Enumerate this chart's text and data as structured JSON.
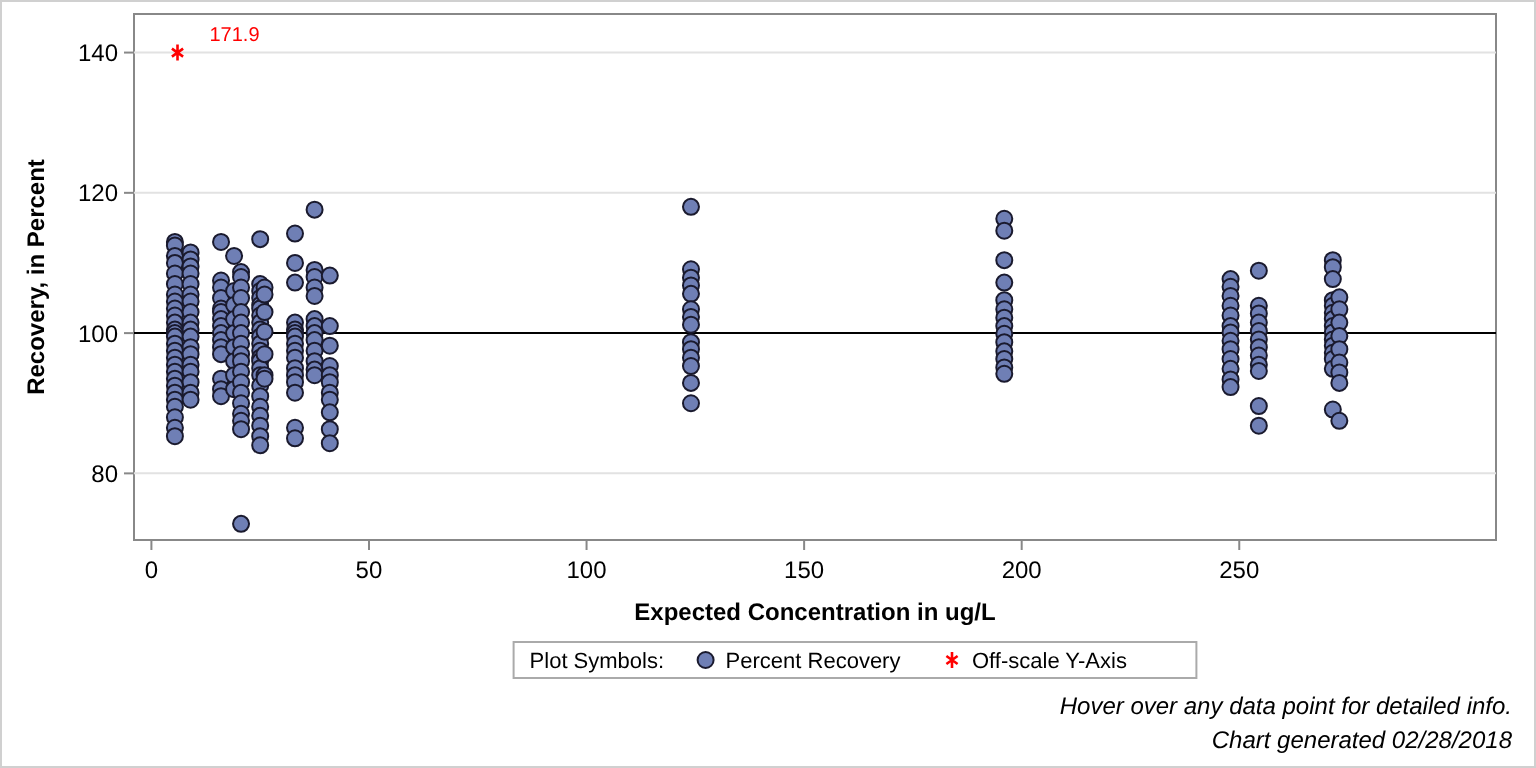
{
  "chart_data": {
    "type": "scatter",
    "xlabel": "Expected Concentration in ug/L",
    "ylabel": "Recovery, in Percent",
    "xlim": [
      -4,
      309
    ],
    "ylim": [
      70.5,
      145.5
    ],
    "xticks": [
      0,
      50,
      100,
      150,
      200,
      250
    ],
    "yticks": [
      80,
      100,
      120,
      140
    ],
    "grid": "y",
    "legend": "bottom",
    "legend_title": "Plot Symbols:",
    "ref_lines": [
      {
        "axis": "y",
        "value": 100,
        "color": "#000000"
      }
    ],
    "annotations": [
      {
        "text": "171.9",
        "x": 6,
        "y": 140
      },
      "Hover over any data point for detailed info.",
      "Chart generated 02/28/2018"
    ],
    "series": [
      {
        "name": "Percent Recovery",
        "marker": "circle",
        "color": "#6f7fb5",
        "x": [
          5.4,
          5.4,
          5.4,
          5.4,
          5.4,
          5.4,
          5.4,
          5.4,
          5.4,
          5.4,
          5.4,
          5.4,
          5.4,
          5.4,
          5.4,
          5.4,
          5.4,
          5.4,
          5.4,
          5.4,
          5.4,
          5.4,
          5.4,
          5.4,
          5.4,
          5.4,
          5.4,
          9,
          9,
          9,
          9,
          9,
          9,
          9,
          9,
          9,
          9,
          9,
          9,
          9,
          9,
          9,
          9,
          9,
          9,
          16,
          16,
          16,
          16,
          16,
          16,
          16,
          16,
          16,
          16,
          16,
          16,
          16,
          16,
          16,
          19,
          19,
          19,
          19,
          19,
          19,
          19,
          19,
          19,
          20.6,
          20.6,
          20.6,
          20.6,
          20.6,
          20.6,
          20.6,
          20.6,
          20.6,
          20.6,
          20.6,
          20.6,
          20.6,
          20.6,
          20.6,
          20.6,
          20.6,
          20.6,
          25,
          25,
          25,
          25,
          25,
          25,
          25,
          25,
          25,
          25,
          25,
          25,
          25,
          25,
          25,
          25,
          25,
          25,
          25,
          25,
          25,
          25,
          25,
          26,
          26,
          26,
          26,
          26,
          26,
          26,
          33,
          33,
          33,
          33,
          33,
          33,
          33,
          33,
          33,
          33,
          33,
          33,
          33,
          33,
          33,
          33,
          37.5,
          37.5,
          37.5,
          37.5,
          37.5,
          37.5,
          37.5,
          37.5,
          37.5,
          37.5,
          37.5,
          37.5,
          37.5,
          41,
          41,
          41,
          41,
          41,
          41,
          41,
          41,
          41,
          41,
          41,
          124,
          124,
          124,
          124,
          124,
          124,
          124,
          124,
          124,
          124,
          124,
          124,
          124,
          124,
          196,
          196,
          196,
          196,
          196,
          196,
          196,
          196,
          196,
          196,
          196,
          196,
          196,
          196,
          248,
          248,
          248,
          248,
          248,
          248,
          248,
          248,
          248,
          248,
          248,
          248,
          248,
          254.5,
          254.5,
          254.5,
          254.5,
          254.5,
          254.5,
          254.5,
          254.5,
          254.5,
          254.5,
          254.5,
          254.5,
          271.5,
          271.5,
          271.5,
          271.5,
          271.5,
          271.5,
          271.5,
          271.5,
          271.5,
          271.5,
          271.5,
          271.5,
          271.5,
          271.5,
          271.5,
          273,
          273,
          273,
          273,
          273,
          273,
          273,
          273,
          273
        ],
        "values": [
          113,
          112.5,
          111,
          110,
          108.5,
          107,
          105.5,
          104.5,
          103.5,
          102.5,
          101.5,
          100.5,
          100,
          99.5,
          98.5,
          97.5,
          96.5,
          95.5,
          94.5,
          93.5,
          92.5,
          91.5,
          90.5,
          89.5,
          88,
          86.5,
          85.3,
          111.5,
          110.5,
          109.5,
          108.5,
          107,
          105.5,
          104.5,
          103,
          101.5,
          100.5,
          99.5,
          98,
          97,
          95.5,
          94.5,
          93,
          91.5,
          90.5,
          113,
          107.5,
          106.5,
          105,
          103.5,
          103,
          102,
          101,
          100,
          99,
          98,
          97,
          93.5,
          92,
          91,
          111,
          106,
          104,
          102,
          100,
          98,
          96,
          94,
          92,
          108.7,
          108,
          106.5,
          105,
          103,
          101.5,
          100,
          98.5,
          97,
          96,
          94.5,
          93,
          91.5,
          90,
          88.5,
          87.5,
          86.3,
          72.8,
          113.4,
          107,
          106,
          105,
          104,
          103.5,
          102.5,
          101.5,
          100.5,
          99.5,
          98.5,
          97.5,
          96.5,
          96,
          95,
          94,
          92.5,
          91,
          89.5,
          88.2,
          86.8,
          85.3,
          84,
          106.5,
          105.5,
          103,
          100.2,
          97,
          94,
          93.5,
          114.2,
          110,
          107.2,
          101.5,
          100.5,
          100,
          99.5,
          98.5,
          97.5,
          96.5,
          95,
          94,
          93,
          91.5,
          86.5,
          85,
          117.6,
          109,
          108,
          106.5,
          105.3,
          102,
          101,
          100,
          99,
          97.5,
          96,
          94.8,
          94,
          108.2,
          101,
          98.2,
          95.3,
          94,
          93,
          91.5,
          90.5,
          88.7,
          86.3,
          84.3,
          118,
          109.1,
          107.9,
          106.8,
          105.6,
          103.4,
          102.3,
          101.2,
          98.7,
          97.7,
          96.5,
          95.3,
          92.9,
          90,
          116.3,
          114.6,
          110.4,
          107.2,
          104.7,
          103.4,
          102.2,
          101,
          99.9,
          98.7,
          97.4,
          96.3,
          95.1,
          94.2,
          107.7,
          106.6,
          105.3,
          103.9,
          102.5,
          101,
          100.1,
          98.9,
          97.7,
          96.3,
          94.9,
          93.4,
          92.3,
          108.9,
          103.9,
          102.8,
          101.5,
          100.3,
          99.1,
          98,
          96.8,
          95.5,
          94.6,
          89.6,
          86.8,
          110.4,
          109.4,
          107.7,
          104.7,
          103.9,
          102.9,
          102,
          101,
          100.1,
          99.1,
          98.2,
          97.2,
          96.3,
          94.9,
          89.1,
          105.1,
          103.4,
          101.5,
          99.6,
          97.7,
          95.8,
          94.4,
          92.9,
          87.5
        ]
      },
      {
        "name": "Off-scale Y-Axis",
        "marker": "cross",
        "color": "#ff0000",
        "x": [
          6
        ],
        "values": [
          140
        ]
      }
    ]
  }
}
